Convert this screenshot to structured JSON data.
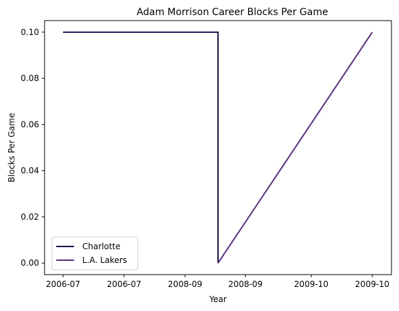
{
  "chart_data": {
    "type": "line",
    "title": "Adam Morrison Career Blocks Per Game",
    "xlabel": "Year",
    "ylabel": "Blocks Per Game",
    "x_tick_labels": [
      "2006-07",
      "2006-07",
      "2008-09",
      "2008-09",
      "2009-10",
      "2009-10"
    ],
    "y_ticks": [
      0.0,
      0.02,
      0.04,
      0.06,
      0.08,
      0.1
    ],
    "y_tick_labels": [
      "0.00",
      "0.02",
      "0.04",
      "0.06",
      "0.08",
      "0.10"
    ],
    "ylim": [
      -0.005,
      0.105
    ],
    "grid": false,
    "legend_position": "lower-left",
    "series": [
      {
        "name": "Charlotte",
        "color": "#1f0f5c",
        "points": [
          {
            "x": "2006-07",
            "y": 0.1
          },
          {
            "x": "2008-09",
            "y": 0.1
          },
          {
            "x": "2008-09",
            "y": 0.0
          }
        ]
      },
      {
        "name": "L.A. Lakers",
        "color": "#5a2a8c",
        "points": [
          {
            "x": "2008-09",
            "y": 0.0
          },
          {
            "x": "2009-10",
            "y": 0.1
          }
        ]
      }
    ]
  }
}
